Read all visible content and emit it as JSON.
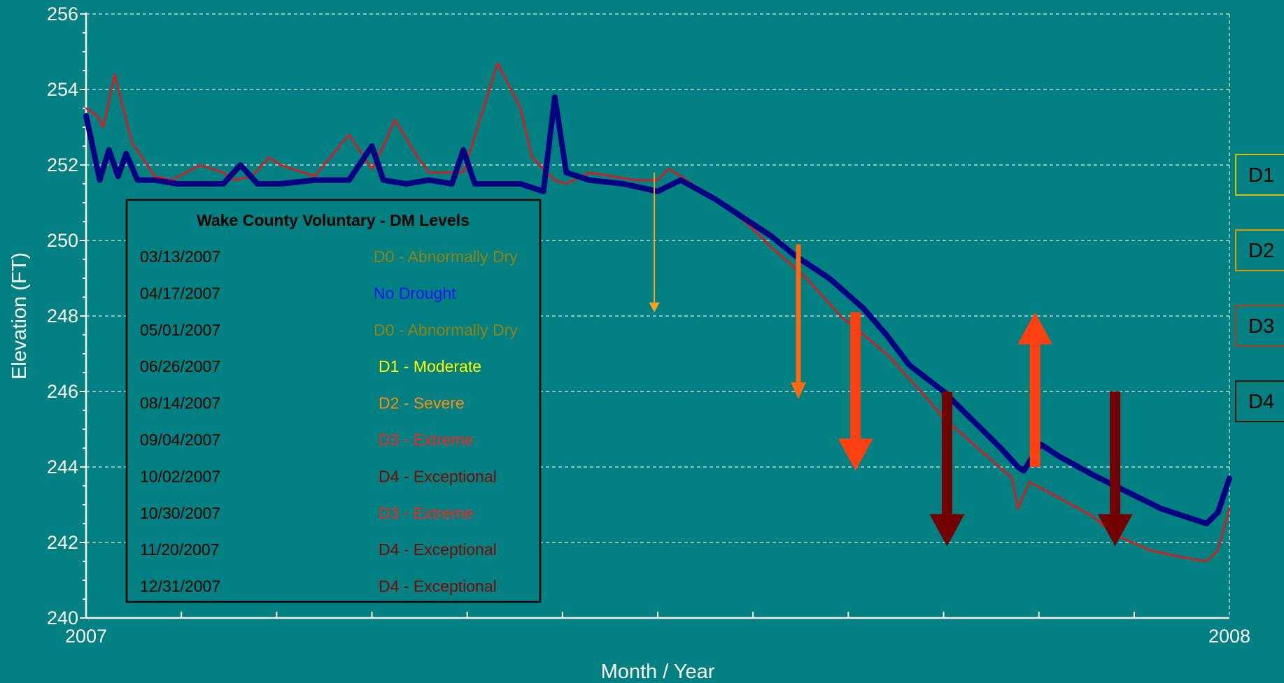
{
  "chart_data": {
    "type": "line",
    "title": "",
    "xlabel": "Month / Year",
    "ylabel": "Elevation (FT)",
    "xlim": [
      2007,
      2008
    ],
    "ylim": [
      240,
      256
    ],
    "x_ticks": [
      "2007",
      "2008"
    ],
    "y_ticks": [
      240,
      242,
      244,
      246,
      248,
      250,
      252,
      254,
      256
    ],
    "grid": true,
    "colors": {
      "background": "#008080",
      "series_blue": "#000080",
      "series_red": "#e8141c",
      "grid": "#dfe6e6"
    },
    "series": [
      {
        "color": "#000080",
        "x": [
          2007.0,
          2007.005,
          2007.012,
          2007.02,
          2007.028,
          2007.035,
          2007.045,
          2007.06,
          2007.08,
          2007.1,
          2007.12,
          2007.135,
          2007.15,
          2007.17,
          2007.2,
          2007.23,
          2007.25,
          2007.26,
          2007.28,
          2007.3,
          2007.32,
          2007.33,
          2007.34,
          2007.36,
          2007.38,
          2007.4,
          2007.41,
          2007.42,
          2007.44,
          2007.47,
          2007.5,
          2007.52,
          2007.55,
          2007.58,
          2007.6,
          2007.62,
          2007.65,
          2007.68,
          2007.7,
          2007.72,
          2007.75,
          2007.78,
          2007.8,
          2007.815,
          2007.82,
          2007.835,
          2007.85,
          2007.88,
          2007.9,
          2007.92,
          2007.94,
          2007.96,
          2007.98,
          2007.99,
          2008.0
        ],
        "y": [
          253.3,
          252.6,
          251.6,
          252.4,
          251.7,
          252.3,
          251.6,
          251.6,
          251.5,
          251.5,
          251.5,
          252.0,
          251.5,
          251.5,
          251.6,
          251.6,
          252.5,
          251.6,
          251.5,
          251.6,
          251.5,
          252.4,
          251.5,
          251.5,
          251.5,
          251.3,
          253.8,
          251.8,
          251.6,
          251.5,
          251.3,
          251.6,
          251.1,
          250.5,
          250.1,
          249.6,
          249.0,
          248.2,
          247.5,
          246.7,
          246.0,
          245.1,
          244.5,
          244.0,
          243.9,
          244.6,
          244.3,
          243.8,
          243.5,
          243.2,
          242.9,
          242.7,
          242.5,
          242.8,
          243.7
        ]
      },
      {
        "color": "#e8141c",
        "x": [
          2007.0,
          2007.01,
          2007.015,
          2007.025,
          2007.03,
          2007.04,
          2007.06,
          2007.075,
          2007.1,
          2007.12,
          2007.13,
          2007.145,
          2007.16,
          2007.17,
          2007.2,
          2007.23,
          2007.25,
          2007.26,
          2007.27,
          2007.29,
          2007.3,
          2007.32,
          2007.33,
          2007.36,
          2007.38,
          2007.39,
          2007.41,
          2007.42,
          2007.44,
          2007.48,
          2007.5,
          2007.51,
          2007.52,
          2007.55,
          2007.58,
          2007.6,
          2007.63,
          2007.66,
          2007.7,
          2007.73,
          2007.75,
          2007.78,
          2007.81,
          2007.815,
          2007.825,
          2007.85,
          2007.88,
          2007.9,
          2007.93,
          2007.96,
          2007.98,
          2007.99,
          2008.0
        ],
        "y": [
          253.5,
          253.3,
          253.0,
          254.4,
          253.8,
          252.6,
          251.7,
          251.6,
          252.0,
          251.8,
          251.6,
          251.7,
          252.2,
          252.0,
          251.7,
          252.8,
          251.9,
          252.5,
          253.2,
          252.2,
          251.8,
          251.8,
          251.8,
          254.7,
          253.5,
          252.2,
          251.6,
          251.5,
          251.8,
          251.6,
          251.6,
          251.9,
          251.7,
          251.1,
          250.4,
          249.8,
          249.0,
          248.0,
          247.0,
          246.0,
          245.3,
          244.5,
          243.7,
          242.9,
          243.6,
          243.2,
          242.7,
          242.2,
          241.8,
          241.6,
          241.5,
          241.8,
          242.9
        ]
      }
    ],
    "legend": {
      "title": "Wake County Voluntary - DM Levels",
      "placement": "lower-left",
      "entries": [
        {
          "date": "03/13/2007",
          "level": "D0 - Abnormally Dry",
          "color": "#8f8416"
        },
        {
          "date": "04/17/2007",
          "level": "No Drought",
          "color": "#1414ff"
        },
        {
          "date": "05/01/2007",
          "level": "D0 - Abnormally Dry",
          "color": "#8f8416"
        },
        {
          "date": "06/26/2007",
          "level": "D1 - Moderate",
          "color": "#ffff00"
        },
        {
          "date": "08/14/2007",
          "level": "D2 - Severe",
          "color": "#ff8c14"
        },
        {
          "date": "09/04/2007",
          "level": "D3 - Extreme",
          "color": "#ff1f1f"
        },
        {
          "date": "10/02/2007",
          "level": "D4 - Exceptional",
          "color": "#7a0a0a"
        },
        {
          "date": "10/30/2007",
          "level": "D3 - Extreme",
          "color": "#ff1f1f"
        },
        {
          "date": "11/20/2007",
          "level": "D4 - Exceptional",
          "color": "#7a0a0a"
        },
        {
          "date": "12/31/2007",
          "level": "D4 - Exceptional",
          "color": "#7a0a0a"
        }
      ]
    },
    "level_markers": [
      {
        "label": "D1",
        "elevation": 252,
        "border": "#d8c000"
      },
      {
        "label": "D2",
        "elevation": 250,
        "border": "#d89a00"
      },
      {
        "label": "D3",
        "elevation": 248,
        "border": "#b83a14"
      },
      {
        "label": "D4",
        "elevation": 246,
        "border": "#3a1a0a"
      }
    ],
    "arrows": [
      {
        "x": 2007.497,
        "from": 251.8,
        "to": 248.1,
        "direction": "down",
        "color": "#ffa020",
        "weight": "thin"
      },
      {
        "x": 2007.623,
        "from": 249.9,
        "to": 245.8,
        "direction": "down",
        "color": "#ff6a10",
        "weight": "medium"
      },
      {
        "x": 2007.673,
        "from": 248.1,
        "to": 243.9,
        "direction": "down",
        "color": "#ff4010",
        "weight": "heavy"
      },
      {
        "x": 2007.753,
        "from": 246.0,
        "to": 241.9,
        "direction": "down",
        "color": "#720000",
        "weight": "heavy"
      },
      {
        "x": 2007.83,
        "from": 244.0,
        "to": 248.1,
        "direction": "up",
        "color": "#ff4010",
        "weight": "heavy"
      },
      {
        "x": 2007.9,
        "from": 246.0,
        "to": 241.9,
        "direction": "down",
        "color": "#720000",
        "weight": "heavy"
      }
    ]
  }
}
